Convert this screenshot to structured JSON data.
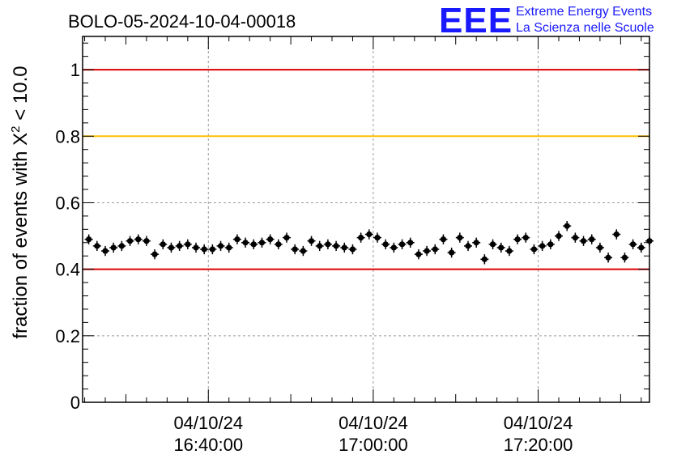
{
  "title": "BOLO-05-2024-10-04-00018",
  "logo": {
    "mark": "EEE",
    "line1": "Extreme Energy Events",
    "line2": "La Scienza nelle Scuole",
    "color": "#1a1aff"
  },
  "chart_data": {
    "type": "scatter",
    "title": "BOLO-05-2024-10-04-00018",
    "ylabel_prefix": "fraction of events with X",
    "ylabel_sup": "2",
    "ylabel_suffix": " < 10.0",
    "ylim": [
      0,
      1.1
    ],
    "yticks": [
      0,
      0.2,
      0.4,
      0.6,
      0.8,
      1
    ],
    "ytick_labels": [
      "0",
      "0.2",
      "0.4",
      "0.6",
      "0.8",
      "1"
    ],
    "xlim_minutes": [
      -15.25,
      53.5
    ],
    "xticks_minutes": [
      0,
      20,
      40
    ],
    "xtick_labels": [
      [
        "04/10/24",
        "16:40:00"
      ],
      [
        "04/10/24",
        "17:00:00"
      ],
      [
        "04/10/24",
        "17:20:00"
      ]
    ],
    "grid": true,
    "reference_lines": [
      {
        "y": 1.0,
        "color": "#e00000"
      },
      {
        "y": 0.8,
        "color": "#ffc000"
      },
      {
        "y": 0.4,
        "color": "#e00000"
      }
    ],
    "series": [
      {
        "marker_color": "#000000",
        "x_minutes": [
          -14.5,
          -13.5,
          -12.5,
          -11.5,
          -10.5,
          -9.5,
          -8.5,
          -7.5,
          -6.5,
          -5.5,
          -4.5,
          -3.5,
          -2.5,
          -1.5,
          -0.5,
          0.5,
          1.5,
          2.5,
          3.5,
          4.5,
          5.5,
          6.5,
          7.5,
          8.5,
          9.5,
          10.5,
          11.5,
          12.5,
          13.5,
          14.5,
          15.5,
          16.5,
          17.5,
          18.5,
          19.5,
          20.5,
          21.5,
          22.5,
          23.5,
          24.5,
          25.5,
          26.5,
          27.5,
          28.5,
          29.5,
          30.5,
          31.5,
          32.5,
          33.5,
          34.5,
          35.5,
          36.5,
          37.5,
          38.5,
          39.5,
          40.5,
          41.5,
          42.5,
          43.5,
          44.5,
          45.5,
          46.5,
          47.5,
          48.5,
          49.5,
          50.5,
          51.5,
          52.5,
          53.5
        ],
        "y": [
          0.49,
          0.47,
          0.455,
          0.465,
          0.47,
          0.485,
          0.49,
          0.485,
          0.445,
          0.475,
          0.465,
          0.47,
          0.475,
          0.465,
          0.46,
          0.46,
          0.47,
          0.465,
          0.49,
          0.48,
          0.475,
          0.48,
          0.49,
          0.475,
          0.495,
          0.46,
          0.455,
          0.485,
          0.47,
          0.475,
          0.47,
          0.465,
          0.46,
          0.495,
          0.505,
          0.495,
          0.475,
          0.465,
          0.475,
          0.48,
          0.445,
          0.455,
          0.46,
          0.49,
          0.45,
          0.495,
          0.47,
          0.48,
          0.43,
          0.475,
          0.465,
          0.455,
          0.49,
          0.495,
          0.46,
          0.47,
          0.475,
          0.5,
          0.53,
          0.495,
          0.485,
          0.49,
          0.465,
          0.435,
          0.505,
          0.435,
          0.475,
          0.465,
          0.485
        ],
        "err": 0.015
      }
    ]
  }
}
